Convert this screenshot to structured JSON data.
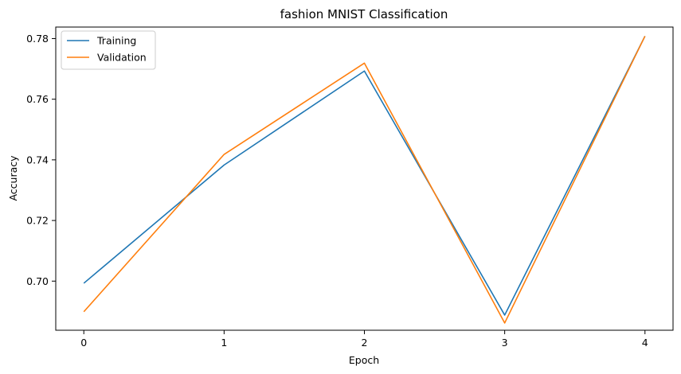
{
  "chart_data": {
    "type": "line",
    "title": "fashion MNIST Classification",
    "xlabel": "Epoch",
    "ylabel": "Accuracy",
    "x": [
      0,
      1,
      2,
      3,
      4
    ],
    "xticks": [
      "0",
      "1",
      "2",
      "3",
      "4"
    ],
    "yticks": [
      "0.70",
      "0.72",
      "0.74",
      "0.76",
      "0.78"
    ],
    "ylim": [
      0.6838,
      0.7838
    ],
    "xlim": [
      -0.2,
      4.2
    ],
    "grid": false,
    "legend_position": "top-left",
    "series": [
      {
        "name": "Training",
        "color": "#1f77b4",
        "values": [
          0.6993,
          0.7383,
          0.7693,
          0.6888,
          0.7808
        ]
      },
      {
        "name": "Validation",
        "color": "#ff7f0e",
        "values": [
          0.6899,
          0.7418,
          0.7719,
          0.6862,
          0.7808
        ]
      }
    ]
  }
}
